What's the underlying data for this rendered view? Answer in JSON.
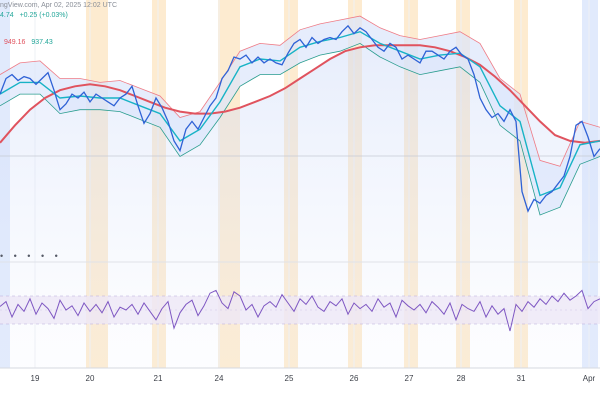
{
  "header": {
    "attribution": "ngView.com, Apr 02, 2025 12:02 UTC",
    "quote_last": "4.74",
    "quote_change": "+0.25 (+0.03%)",
    "indicator_upper": "949.16",
    "indicator_lower": "937.43",
    "rsi_dots": "• • • • •"
  },
  "colors": {
    "price": "#2f62d6",
    "ma_slow": "#e0535e",
    "ma_fast": "#17b3c6",
    "band_upper": "#ef7b85",
    "band_lower": "#2a9d8f",
    "band_fill": "#dbe5fb",
    "session_highlight": "#fde7c8",
    "session_highlight_blue": "#dce6fb",
    "rsi_line": "#7e57c2",
    "rsi_band": "#ede7f6"
  },
  "chart_data": {
    "type": "line",
    "x_labels": [
      "19",
      "20",
      "21",
      "24",
      "25",
      "26",
      "27",
      "28",
      "31",
      "Apr"
    ],
    "grid": true,
    "panes": [
      {
        "name": "price",
        "series": [
          {
            "x": [
              0,
              6,
              12,
              18,
              24,
              30,
              36,
              42,
              48,
              54,
              60,
              66,
              72,
              78,
              84,
              90,
              96,
              102,
              108,
              114,
              120,
              126,
              132,
              138,
              144,
              150,
              156,
              162,
              168,
              174,
              180,
              186,
              192,
              198,
              204,
              210,
              216,
              222,
              228,
              234,
              240,
              246,
              252,
              258,
              264,
              270,
              276,
              282,
              288,
              294,
              300,
              306,
              312,
              318,
              324,
              330,
              336,
              342,
              348,
              354,
              360,
              366,
              372,
              378,
              384,
              390,
              396,
              402,
              408,
              414,
              420,
              426,
              432,
              438,
              444,
              450,
              456,
              462,
              468,
              474,
              480,
              486,
              492,
              498,
              504,
              510,
              516,
              522,
              528,
              534,
              540,
              546,
              552,
              558,
              564,
              570,
              576,
              582,
              588,
              594,
              600
            ],
            "y": [
              0.62,
              0.7,
              0.72,
              0.69,
              0.71,
              0.7,
              0.67,
              0.7,
              0.73,
              0.64,
              0.54,
              0.57,
              0.62,
              0.6,
              0.63,
              0.58,
              0.62,
              0.6,
              0.58,
              0.56,
              0.6,
              0.62,
              0.66,
              0.56,
              0.47,
              0.52,
              0.6,
              0.55,
              0.48,
              0.38,
              0.33,
              0.44,
              0.48,
              0.44,
              0.5,
              0.56,
              0.6,
              0.7,
              0.74,
              0.81,
              0.8,
              0.82,
              0.78,
              0.81,
              0.78,
              0.8,
              0.78,
              0.77,
              0.83,
              0.88,
              0.9,
              0.86,
              0.91,
              0.88,
              0.9,
              0.91,
              0.9,
              0.94,
              0.97,
              0.93,
              0.96,
              0.94,
              0.9,
              0.86,
              0.84,
              0.88,
              0.86,
              0.8,
              0.82,
              0.8,
              0.78,
              0.84,
              0.84,
              0.82,
              0.8,
              0.84,
              0.86,
              0.82,
              0.8,
              0.72,
              0.6,
              0.54,
              0.5,
              0.52,
              0.48,
              0.54,
              0.48,
              0.12,
              0.02,
              0.08,
              0.06,
              0.1,
              0.12,
              0.16,
              0.2,
              0.3,
              0.46,
              0.48,
              0.4,
              0.3,
              0.34
            ],
            "name": ""
          },
          {
            "x": [
              0,
              15,
              30,
              45,
              60,
              75,
              90,
              105,
              120,
              135,
              150,
              165,
              180,
              195,
              210,
              225,
              240,
              255,
              270,
              285,
              300,
              315,
              330,
              345,
              360,
              375,
              390,
              405,
              420,
              435,
              450,
              465,
              480,
              495,
              510,
              525,
              540,
              555,
              570,
              585,
              600
            ],
            "y": [
              0.37,
              0.46,
              0.54,
              0.6,
              0.64,
              0.66,
              0.67,
              0.66,
              0.64,
              0.61,
              0.58,
              0.55,
              0.53,
              0.52,
              0.52,
              0.53,
              0.55,
              0.58,
              0.61,
              0.65,
              0.7,
              0.75,
              0.8,
              0.84,
              0.86,
              0.87,
              0.87,
              0.87,
              0.87,
              0.86,
              0.84,
              0.81,
              0.77,
              0.71,
              0.64,
              0.56,
              0.48,
              0.41,
              0.38,
              0.37,
              0.38
            ],
            "name": ""
          },
          {
            "x": [
              0,
              20,
              40,
              60,
              80,
              100,
              120,
              140,
              160,
              180,
              200,
              220,
              240,
              260,
              280,
              300,
              320,
              340,
              360,
              380,
              400,
              420,
              440,
              460,
              480,
              500,
              520,
              540,
              560,
              580,
              600
            ],
            "y": [
              0.62,
              0.68,
              0.68,
              0.6,
              0.61,
              0.6,
              0.6,
              0.56,
              0.52,
              0.38,
              0.44,
              0.58,
              0.76,
              0.8,
              0.79,
              0.86,
              0.89,
              0.91,
              0.94,
              0.88,
              0.84,
              0.8,
              0.82,
              0.83,
              0.76,
              0.56,
              0.48,
              0.1,
              0.14,
              0.36,
              0.38
            ],
            "name": ""
          },
          {
            "x": [
              0,
              20,
              40,
              60,
              80,
              100,
              120,
              140,
              160,
              180,
              200,
              220,
              240,
              260,
              280,
              300,
              320,
              340,
              360,
              380,
              400,
              420,
              440,
              460,
              480,
              500,
              520,
              540,
              560,
              580,
              600
            ],
            "y": [
              0.72,
              0.78,
              0.79,
              0.7,
              0.7,
              0.68,
              0.69,
              0.65,
              0.61,
              0.5,
              0.53,
              0.68,
              0.84,
              0.88,
              0.87,
              0.95,
              0.98,
              1.0,
              1.02,
              0.96,
              0.92,
              0.9,
              0.92,
              0.94,
              0.88,
              0.7,
              0.62,
              0.28,
              0.25,
              0.48,
              0.45
            ],
            "name": ""
          },
          {
            "x": [
              0,
              20,
              40,
              60,
              80,
              100,
              120,
              140,
              160,
              180,
              200,
              220,
              240,
              260,
              280,
              300,
              320,
              340,
              360,
              380,
              400,
              420,
              440,
              460,
              480,
              500,
              520,
              540,
              560,
              580,
              600
            ],
            "y": [
              0.56,
              0.62,
              0.62,
              0.52,
              0.54,
              0.54,
              0.53,
              0.49,
              0.45,
              0.3,
              0.36,
              0.5,
              0.66,
              0.72,
              0.72,
              0.78,
              0.82,
              0.84,
              0.88,
              0.81,
              0.76,
              0.72,
              0.74,
              0.76,
              0.68,
              0.46,
              0.38,
              0.0,
              0.04,
              0.26,
              0.3
            ],
            "name": ""
          }
        ]
      },
      {
        "name": "rsi",
        "ylim": [
          0,
          100
        ],
        "band": [
          30,
          70
        ],
        "midline": 50,
        "series": [
          {
            "x": [
              0,
              6,
              12,
              18,
              24,
              30,
              36,
              42,
              48,
              54,
              60,
              66,
              72,
              78,
              84,
              90,
              96,
              102,
              108,
              114,
              120,
              126,
              132,
              138,
              144,
              150,
              156,
              162,
              168,
              174,
              180,
              186,
              192,
              198,
              204,
              210,
              216,
              222,
              228,
              234,
              240,
              246,
              252,
              258,
              264,
              270,
              276,
              282,
              288,
              294,
              300,
              306,
              312,
              318,
              324,
              330,
              336,
              342,
              348,
              354,
              360,
              366,
              372,
              378,
              384,
              390,
              396,
              402,
              408,
              414,
              420,
              426,
              432,
              438,
              444,
              450,
              456,
              462,
              468,
              474,
              480,
              486,
              492,
              498,
              504,
              510,
              516,
              522,
              528,
              534,
              540,
              546,
              552,
              558,
              564,
              570,
              576,
              582,
              588,
              594,
              600
            ],
            "y": [
              55,
              62,
              40,
              58,
              48,
              66,
              44,
              60,
              52,
              38,
              64,
              50,
              56,
              42,
              60,
              48,
              58,
              46,
              62,
              40,
              54,
              50,
              58,
              44,
              60,
              48,
              36,
              52,
              62,
              24,
              46,
              58,
              64,
              42,
              56,
              74,
              78,
              60,
              52,
              76,
              70,
              50,
              58,
              40,
              56,
              62,
              54,
              72,
              60,
              48,
              66,
              58,
              70,
              54,
              48,
              62,
              56,
              66,
              44,
              60,
              52,
              58,
              48,
              66,
              54,
              60,
              40,
              64,
              56,
              50,
              58,
              46,
              62,
              54,
              44,
              60,
              36,
              58,
              52,
              48,
              62,
              40,
              56,
              44,
              52,
              20,
              58,
              48,
              62,
              54,
              66,
              58,
              70,
              62,
              74,
              64,
              70,
              78,
              52,
              62,
              66
            ],
            "name": ""
          }
        ]
      }
    ],
    "session_highlights": [
      {
        "from": 0,
        "to": 10,
        "color": "blue"
      },
      {
        "from": 86,
        "to": 108,
        "color": "orange"
      },
      {
        "from": 152,
        "to": 166,
        "color": "orange"
      },
      {
        "from": 218,
        "to": 240,
        "color": "orange"
      },
      {
        "from": 284,
        "to": 298,
        "color": "orange"
      },
      {
        "from": 348,
        "to": 362,
        "color": "orange"
      },
      {
        "from": 404,
        "to": 418,
        "color": "orange"
      },
      {
        "from": 456,
        "to": 470,
        "color": "orange"
      },
      {
        "from": 514,
        "to": 528,
        "color": "orange"
      },
      {
        "from": 582,
        "to": 598,
        "color": "blue"
      }
    ]
  }
}
